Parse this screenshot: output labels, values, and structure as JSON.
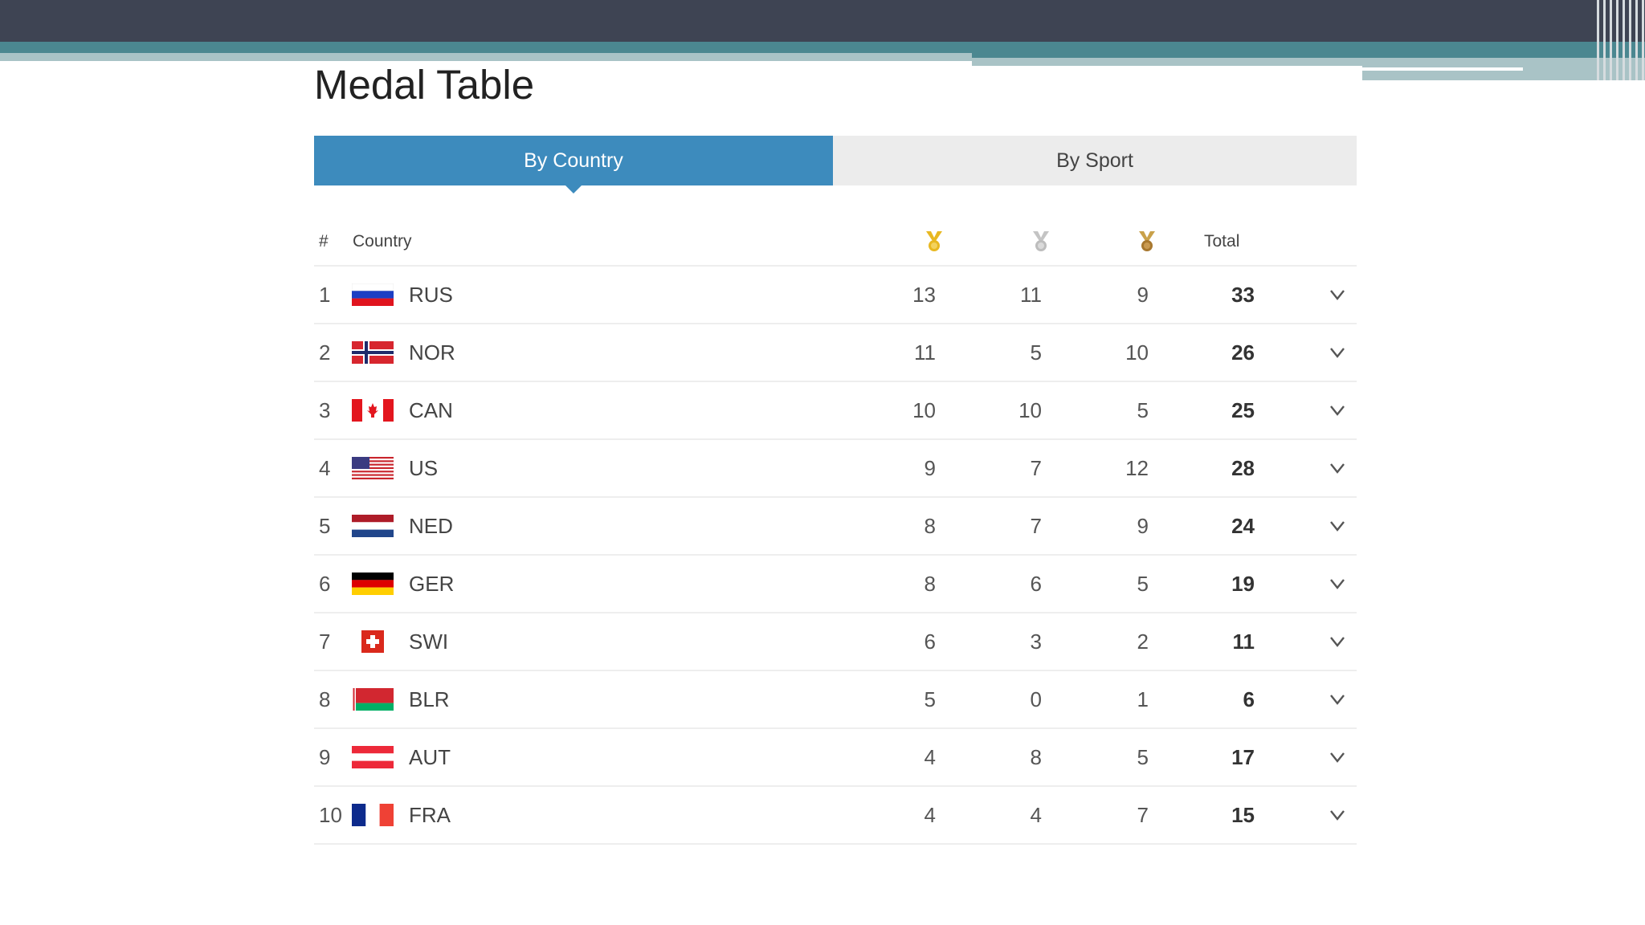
{
  "page": {
    "title": "Medal Table"
  },
  "tabs": [
    {
      "label": "By Country",
      "active": true
    },
    {
      "label": "By Sport",
      "active": false
    }
  ],
  "table": {
    "headers": {
      "rank": "#",
      "country": "Country",
      "gold_icon": "gold-medal-icon",
      "silver_icon": "silver-medal-icon",
      "bronze_icon": "bronze-medal-icon",
      "total": "Total"
    },
    "rows": [
      {
        "rank": "1",
        "country": "RUS",
        "flag": "russia-flag-icon",
        "gold": "13",
        "silver": "11",
        "bronze": "9",
        "total": "33"
      },
      {
        "rank": "2",
        "country": "NOR",
        "flag": "norway-flag-icon",
        "gold": "11",
        "silver": "5",
        "bronze": "10",
        "total": "26"
      },
      {
        "rank": "3",
        "country": "CAN",
        "flag": "canada-flag-icon",
        "gold": "10",
        "silver": "10",
        "bronze": "5",
        "total": "25"
      },
      {
        "rank": "4",
        "country": "US",
        "flag": "usa-flag-icon",
        "gold": "9",
        "silver": "7",
        "bronze": "12",
        "total": "28"
      },
      {
        "rank": "5",
        "country": "NED",
        "flag": "netherlands-flag-icon",
        "gold": "8",
        "silver": "7",
        "bronze": "9",
        "total": "24"
      },
      {
        "rank": "6",
        "country": "GER",
        "flag": "germany-flag-icon",
        "gold": "8",
        "silver": "6",
        "bronze": "5",
        "total": "19"
      },
      {
        "rank": "7",
        "country": "SWI",
        "flag": "switzerland-flag-icon",
        "gold": "6",
        "silver": "3",
        "bronze": "2",
        "total": "11"
      },
      {
        "rank": "8",
        "country": "BLR",
        "flag": "belarus-flag-icon",
        "gold": "5",
        "silver": "0",
        "bronze": "1",
        "total": "6"
      },
      {
        "rank": "9",
        "country": "AUT",
        "flag": "austria-flag-icon",
        "gold": "4",
        "silver": "8",
        "bronze": "5",
        "total": "17"
      },
      {
        "rank": "10",
        "country": "FRA",
        "flag": "france-flag-icon",
        "gold": "4",
        "silver": "4",
        "bronze": "7",
        "total": "15"
      }
    ],
    "expand_glyph": "v"
  },
  "colors": {
    "tab_active": "#3d8bbd",
    "tab_inactive": "#ececec",
    "gold": "#e8b822",
    "silver": "#c4c4c4",
    "bronze": "#c08a3a",
    "banner_dark": "#3e4453",
    "banner_teal": "#4b8790"
  }
}
